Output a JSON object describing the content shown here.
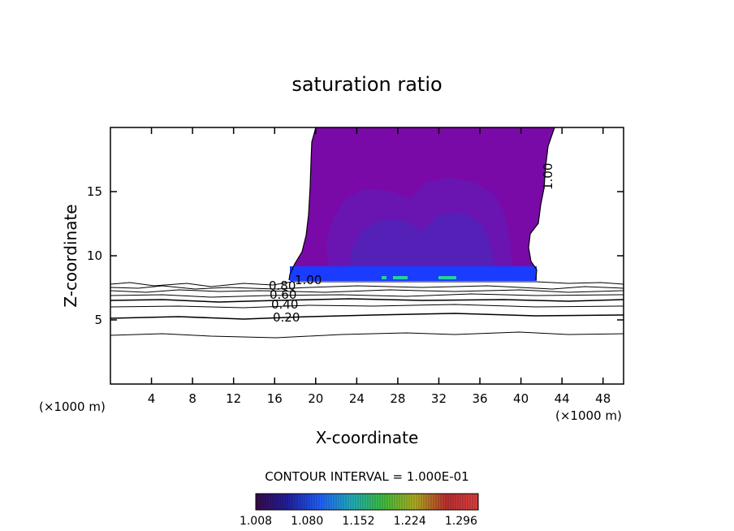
{
  "chart_data": {
    "type": "contour",
    "title": "saturation ratio",
    "xlabel": "X-coordinate",
    "ylabel": "Z-coordinate",
    "x_unit_left": "(×1000 m)",
    "x_unit_right": "(×1000 m)",
    "xlim": [
      0,
      50
    ],
    "ylim": [
      0,
      20
    ],
    "x_ticks": [
      "4",
      "8",
      "12",
      "16",
      "20",
      "24",
      "28",
      "32",
      "36",
      "40",
      "44",
      "48"
    ],
    "y_ticks": [
      "5",
      "10",
      "15"
    ],
    "contour_interval_text": "CONTOUR INTERVAL = 1.000E-01",
    "contour_labels": [
      "0.80",
      "1.00",
      "0.60",
      "0.40",
      "0.20",
      "1.00"
    ],
    "colorbar": {
      "min": 1.008,
      "max": 1.32,
      "tick_labels": [
        "1.008",
        "1.080",
        "1.152",
        "1.224",
        "1.296"
      ],
      "colors": [
        "#3a0a4a",
        "#2020a0",
        "#2060ff",
        "#20b0c0",
        "#40c040",
        "#b0b020",
        "#c03030",
        "#e04040"
      ]
    },
    "fill_colors": {
      "saturated_low": "#7a0aa8",
      "saturated_mid": "#6a14b2",
      "saturated_high": "#5520b8",
      "band": "#1a3cff",
      "band_hot": "#24d0a0"
    }
  }
}
